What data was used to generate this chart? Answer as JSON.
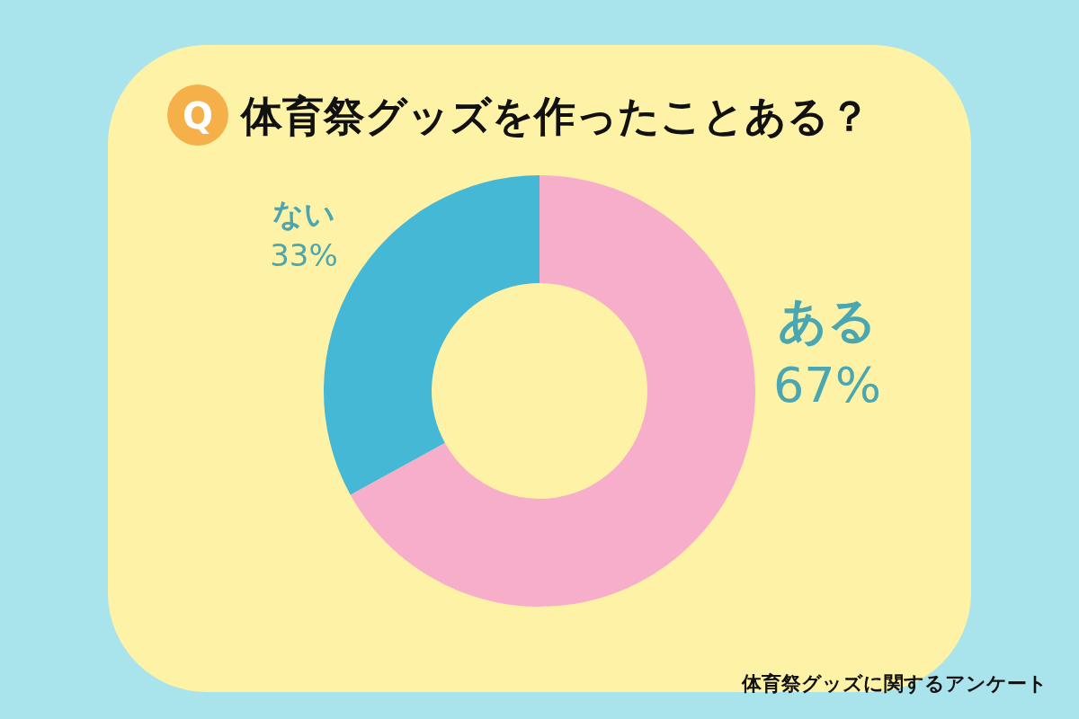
{
  "chart_data": {
    "type": "donut",
    "title": "体育祭グッズを作ったことある？",
    "categories": [
      "ある",
      "ない"
    ],
    "values": [
      67,
      33
    ],
    "colors": [
      "#f7aecb",
      "#45b8d6"
    ],
    "value_labels": [
      "67%",
      "33%"
    ],
    "annotations": [
      "Q",
      "体育祭グッズに関するアンケート"
    ]
  }
}
